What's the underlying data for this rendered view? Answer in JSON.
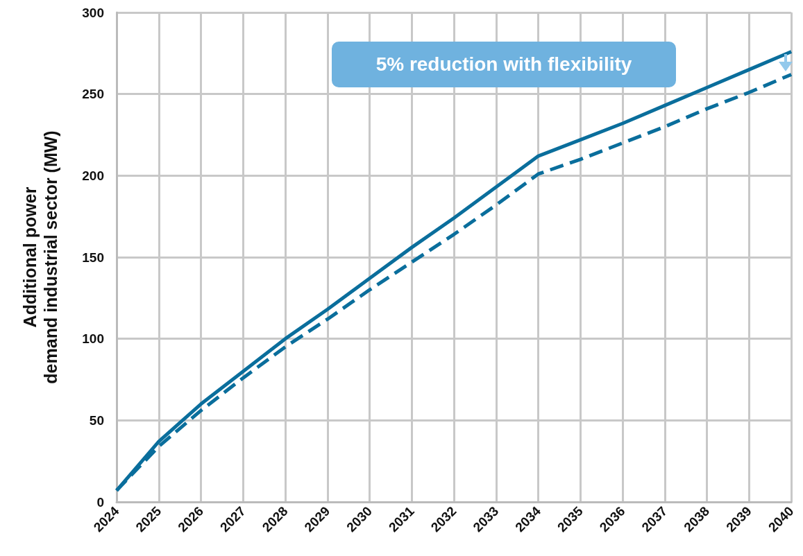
{
  "chart_data": {
    "type": "line",
    "ylabel": "Additional power demand industrial sector (MW)",
    "x": [
      2024,
      2025,
      2026,
      2027,
      2028,
      2029,
      2030,
      2031,
      2032,
      2033,
      2034,
      2035,
      2036,
      2037,
      2038,
      2039,
      2040
    ],
    "series": [
      {
        "color": "#0a6e9c",
        "line_style": "solid",
        "values": [
          7,
          37,
          60,
          80,
          100,
          118,
          137,
          156,
          174,
          193,
          212,
          222,
          232,
          243,
          254,
          265,
          276
        ]
      },
      {
        "color": "#0a6e9c",
        "line_style": "dashed",
        "values": [
          7,
          34,
          56,
          76,
          95,
          112,
          130,
          147,
          164,
          182,
          201,
          210,
          220,
          230,
          241,
          251,
          262
        ]
      }
    ],
    "xlim": [
      2024,
      2040
    ],
    "xticks": [
      2024,
      2025,
      2026,
      2027,
      2028,
      2029,
      2030,
      2031,
      2032,
      2033,
      2034,
      2035,
      2036,
      2037,
      2038,
      2039,
      2040
    ],
    "ylim": [
      0,
      300
    ],
    "yticks": [
      0,
      50,
      100,
      150,
      200,
      250,
      300
    ],
    "grid": true,
    "marker": "none",
    "annotations": [
      "5% reduction with flexibility"
    ]
  }
}
